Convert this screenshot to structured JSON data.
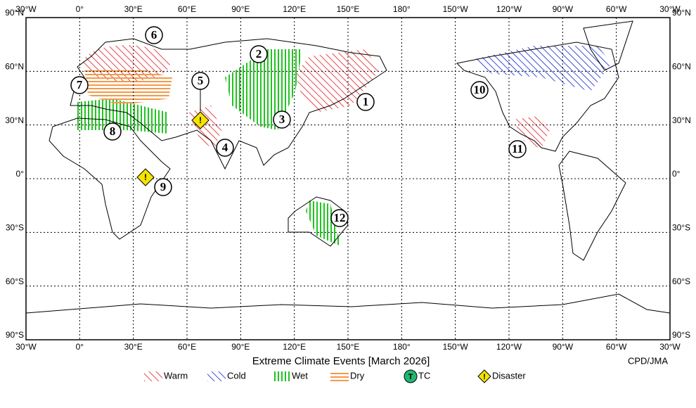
{
  "map": {
    "title": "Extreme Climate Events [March 2026]",
    "credit": "CPD/JMA",
    "lon_ticks": [
      {
        "value": -30,
        "label": "30°W"
      },
      {
        "value": 0,
        "label": "0°"
      },
      {
        "value": 30,
        "label": "30°E"
      },
      {
        "value": 60,
        "label": "60°E"
      },
      {
        "value": 90,
        "label": "90°E"
      },
      {
        "value": 120,
        "label": "120°E"
      },
      {
        "value": 150,
        "label": "150°E"
      },
      {
        "value": 180,
        "label": "180°"
      },
      {
        "value": 210,
        "label": "150°W"
      },
      {
        "value": 240,
        "label": "120°W"
      },
      {
        "value": 270,
        "label": "90°W"
      },
      {
        "value": 300,
        "label": "60°W"
      },
      {
        "value": 330,
        "label": "30°W"
      }
    ],
    "lat_ticks": [
      {
        "value": 90,
        "label": "90°N"
      },
      {
        "value": 60,
        "label": "60°N"
      },
      {
        "value": 30,
        "label": "30°N"
      },
      {
        "value": 0,
        "label": "0°"
      },
      {
        "value": -30,
        "label": "30°S"
      },
      {
        "value": -60,
        "label": "60°S"
      },
      {
        "value": -90,
        "label": "90°S"
      }
    ],
    "events": [
      "1",
      "2",
      "3",
      "4",
      "5",
      "6",
      "7",
      "8",
      "9",
      "10",
      "11",
      "12"
    ],
    "legend": [
      {
        "label": "Warm",
        "color": "#e8474b"
      },
      {
        "label": "Cold",
        "color": "#3a4fd8"
      },
      {
        "label": "Wet",
        "color": "#22c322"
      },
      {
        "label": "Dry",
        "color": "#f29a4a"
      },
      {
        "label": "TC",
        "icon": "T",
        "color": "#1fb873"
      },
      {
        "label": "Disaster",
        "icon": "!",
        "color": "#f5e400"
      }
    ]
  }
}
